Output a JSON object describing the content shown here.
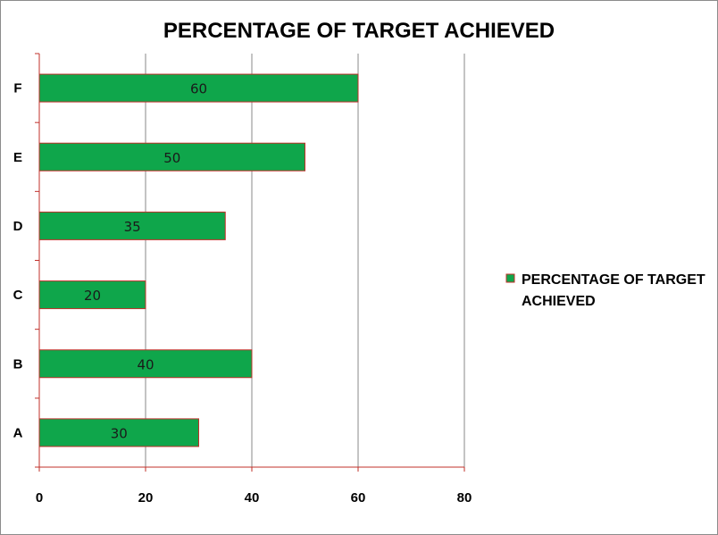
{
  "chart_data": {
    "type": "bar",
    "orientation": "horizontal",
    "title": "PERCENTAGE OF TARGET ACHIEVED",
    "categories": [
      "A",
      "B",
      "C",
      "D",
      "E",
      "F"
    ],
    "series": [
      {
        "name": "PERCENTAGE OF TARGET ACHIEVED",
        "values": [
          30,
          40,
          20,
          35,
          50,
          60
        ],
        "color": "#0fa64b",
        "border_color": "#c0302a"
      }
    ],
    "xlim": [
      0,
      80
    ],
    "x_ticks": [
      0,
      20,
      40,
      60,
      80
    ],
    "gridlines": "vertical",
    "legend_position": "right",
    "legend_lines": [
      "PERCENTAGE OF TARGET",
      "ACHIEVED"
    ],
    "data_labels": true
  }
}
